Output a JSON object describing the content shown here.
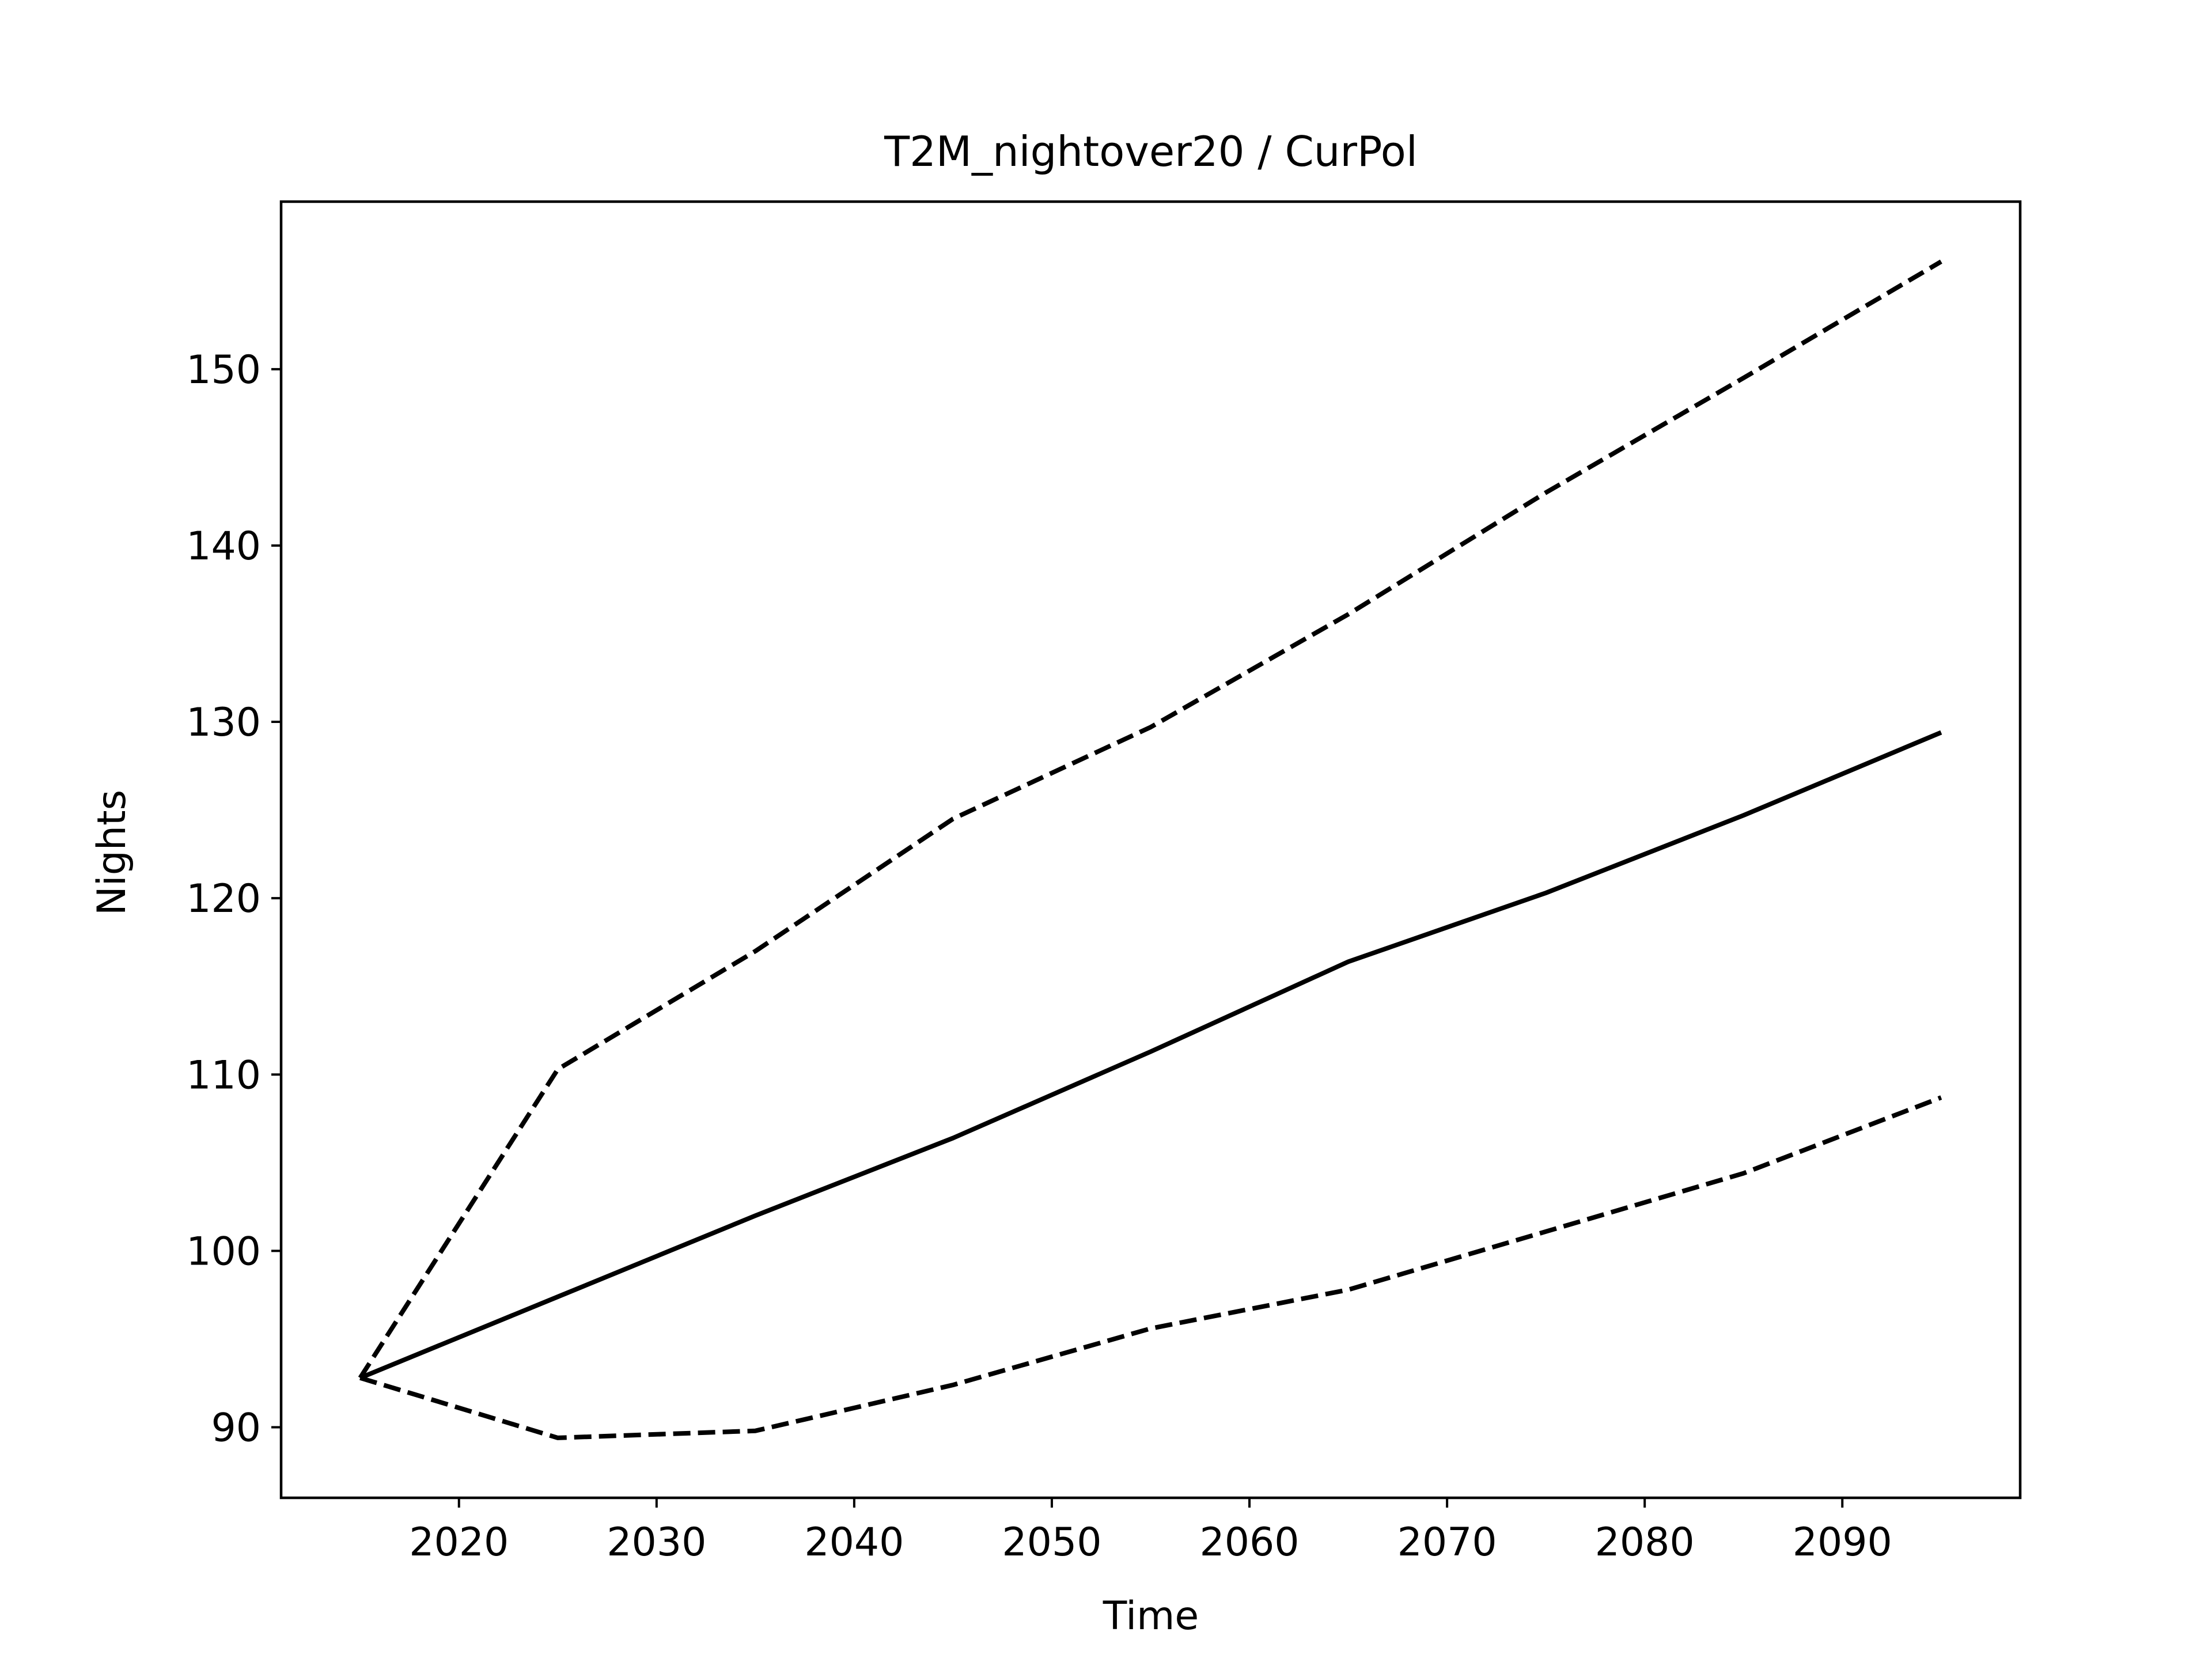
{
  "chart_data": {
    "type": "line",
    "title": "T2M_nightover20 / CurPol",
    "xlabel": "Time",
    "ylabel": "Nights",
    "xlim": [
      2011,
      2099
    ],
    "ylim": [
      86.0,
      159.5
    ],
    "xticks": [
      2020,
      2030,
      2040,
      2050,
      2060,
      2070,
      2080,
      2090
    ],
    "xtick_labels": [
      "2020",
      "2030",
      "2040",
      "2050",
      "2060",
      "2070",
      "2080",
      "2090"
    ],
    "yticks": [
      90,
      100,
      110,
      120,
      130,
      140,
      150
    ],
    "ytick_labels": [
      "90",
      "100",
      "110",
      "120",
      "130",
      "140",
      "150"
    ],
    "grid": false,
    "x": [
      2015,
      2025,
      2035,
      2045,
      2055,
      2065,
      2075,
      2085,
      2095
    ],
    "series": [
      {
        "style": "solid",
        "color": "#000000",
        "values": [
          92.8,
          97.4,
          102.0,
          106.4,
          111.3,
          116.4,
          120.3,
          124.7,
          129.4
        ]
      },
      {
        "style": "dashed",
        "color": "#000000",
        "values": [
          92.8,
          110.3,
          117.0,
          124.5,
          129.7,
          136.1,
          143.0,
          149.5,
          156.1
        ]
      },
      {
        "style": "dashed",
        "color": "#000000",
        "values": [
          92.8,
          89.4,
          89.8,
          92.4,
          95.6,
          97.8,
          101.1,
          104.4,
          108.7
        ]
      }
    ]
  }
}
